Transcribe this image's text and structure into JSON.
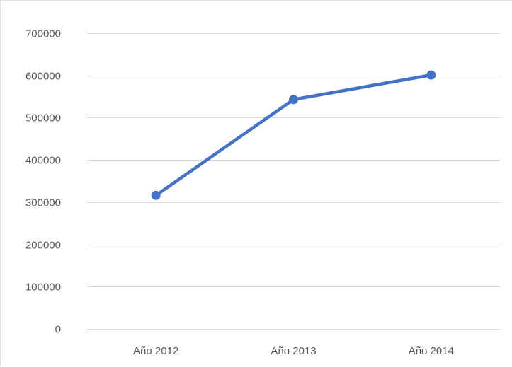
{
  "chart_data": {
    "type": "line",
    "categories": [
      "Año 2012",
      "Año 2013",
      "Año 2014"
    ],
    "series": [
      {
        "values": [
          316000,
          543000,
          601000
        ]
      }
    ],
    "title": "",
    "xlabel": "",
    "ylabel": "",
    "ylim": [
      0,
      700000
    ],
    "yticks": [
      "0",
      "100000",
      "200000",
      "300000",
      "400000",
      "500000",
      "600000",
      "700000"
    ],
    "grid": true,
    "legend": "none",
    "colors": {
      "line": "#4472c4",
      "grid": "#d9d9d9",
      "tick_text": "#595959"
    }
  }
}
